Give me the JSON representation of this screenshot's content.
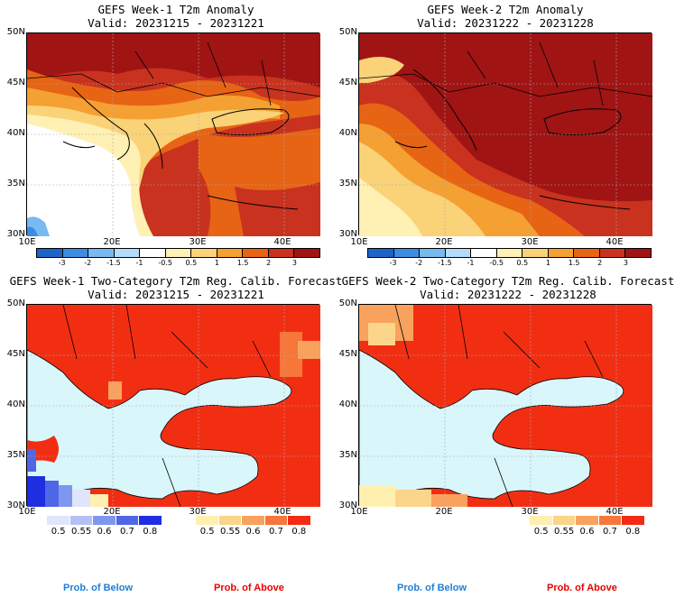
{
  "panels": [
    {
      "title1": "GEFS Week-1 T2m Anomaly",
      "title2": "Valid: 20231215 - 20231221"
    },
    {
      "title1": "GEFS Week-2 T2m Anomaly",
      "title2": "Valid: 20231222 - 20231228"
    },
    {
      "title1": "GEFS Week-1 Two-Category T2m Reg. Calib. Forecast",
      "title2": "Valid: 20231215 - 20231221"
    },
    {
      "title1": "GEFS Week-2 Two-Category T2m Reg. Calib. Forecast",
      "title2": "Valid: 20231222 - 20231228"
    }
  ],
  "axes": {
    "lat": [
      "50N",
      "45N",
      "40N",
      "35N",
      "30N"
    ],
    "lon": [
      "10E",
      "20E",
      "30E",
      "40E"
    ]
  },
  "anomaly_scale": {
    "labels": [
      "-3",
      "-2",
      "-1.5",
      "-1",
      "-0.5",
      "0.5",
      "1",
      "1.5",
      "2",
      "3"
    ],
    "colors": [
      "#1e64c8",
      "#3c8ce1",
      "#78b9f0",
      "#b4dcfa",
      "#ffffff",
      "#fff0b4",
      "#fad278",
      "#f5a032",
      "#e66414",
      "#c8321e",
      "#a01414"
    ]
  },
  "below_scale": {
    "labels": [
      "0.5",
      "0.55",
      "0.6",
      "0.7",
      "0.8"
    ],
    "colors": [
      "#dfe6fb",
      "#b3c1f5",
      "#7f96ee",
      "#4f66e6",
      "#1f2ee0"
    ]
  },
  "above_scale": {
    "labels": [
      "0.5",
      "0.55",
      "0.6",
      "0.7",
      "0.8"
    ],
    "colors": [
      "#fff0b0",
      "#fbd58a",
      "#f9a25e",
      "#f7763a",
      "#f42a14"
    ]
  },
  "legend": {
    "below": "Prob. of Below",
    "above": "Prob. of Above"
  },
  "colors": {
    "sea_prob": "#d9f6fb",
    "land_above": "#f22e12",
    "below_text": "#1e7ed8",
    "above_text": "#e60000"
  }
}
